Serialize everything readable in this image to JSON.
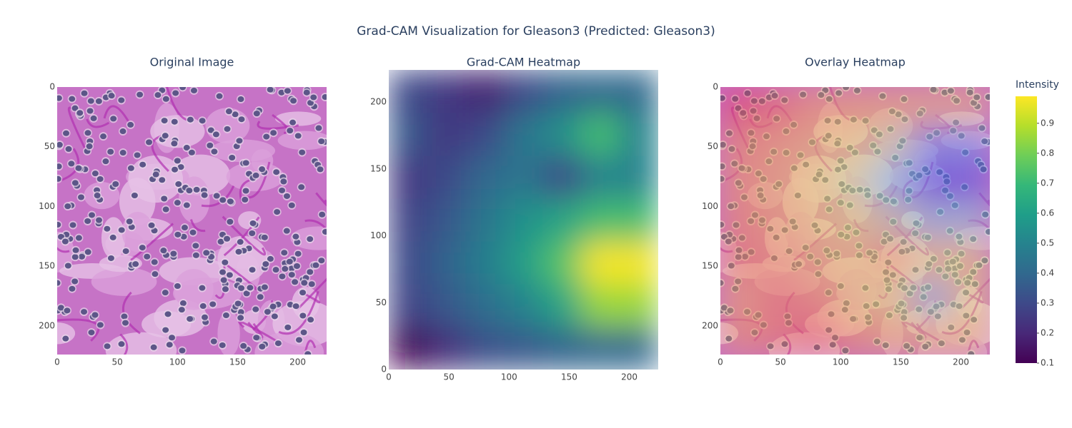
{
  "title": "Grad-CAM Visualization for Gleason3 (Predicted: Gleason3)",
  "chart_data": [
    {
      "type": "image",
      "title": "Original Image",
      "xlim": [
        0,
        224
      ],
      "ylim": [
        0,
        224
      ],
      "yreversed": true,
      "xticks": [
        0,
        50,
        100,
        150,
        200
      ],
      "yticks": [
        0,
        50,
        100,
        150,
        200
      ]
    },
    {
      "type": "heatmap",
      "title": "Grad-CAM Heatmap",
      "xlim": [
        0,
        224
      ],
      "ylim": [
        0,
        224
      ],
      "yreversed": false,
      "xticks": [
        0,
        50,
        100,
        150,
        200
      ],
      "yticks": [
        0,
        50,
        100,
        150,
        200
      ],
      "x": [
        16,
        48,
        80,
        112,
        144,
        176,
        208
      ],
      "y": [
        16,
        48,
        80,
        112,
        144,
        176,
        208
      ],
      "z": [
        [
          0.1,
          0.22,
          0.32,
          0.35,
          0.38,
          0.4,
          0.4
        ],
        [
          0.28,
          0.35,
          0.42,
          0.5,
          0.62,
          0.85,
          0.85
        ],
        [
          0.3,
          0.38,
          0.48,
          0.6,
          0.75,
          0.98,
          0.98
        ],
        [
          0.28,
          0.35,
          0.45,
          0.55,
          0.62,
          0.72,
          0.72
        ],
        [
          0.25,
          0.3,
          0.4,
          0.45,
          0.3,
          0.5,
          0.5
        ],
        [
          0.35,
          0.25,
          0.3,
          0.45,
          0.55,
          0.72,
          0.5
        ],
        [
          0.3,
          0.25,
          0.18,
          0.3,
          0.38,
          0.4,
          0.4
        ]
      ],
      "colorscale": [
        "#440154",
        "#482878",
        "#3e4989",
        "#31688e",
        "#26828e",
        "#1f9e89",
        "#35b779",
        "#6ece58",
        "#b5de2b",
        "#fde725"
      ],
      "colorbar": {
        "title": "Intensity",
        "lim": [
          0.1,
          0.99
        ],
        "ticks": [
          0.1,
          0.2,
          0.3,
          0.4,
          0.5,
          0.6,
          0.7,
          0.8,
          0.9
        ]
      }
    },
    {
      "type": "overlay",
      "title": "Overlay Heatmap",
      "xlim": [
        0,
        224
      ],
      "ylim": [
        0,
        224
      ],
      "yreversed": true,
      "xticks": [
        0,
        50,
        100,
        150,
        200
      ],
      "yticks": [
        0,
        50,
        100,
        150,
        200
      ],
      "colorscale": [
        "#e8325a",
        "#f0a060",
        "#e8e070",
        "#70c0f0",
        "#5040e0"
      ]
    }
  ]
}
